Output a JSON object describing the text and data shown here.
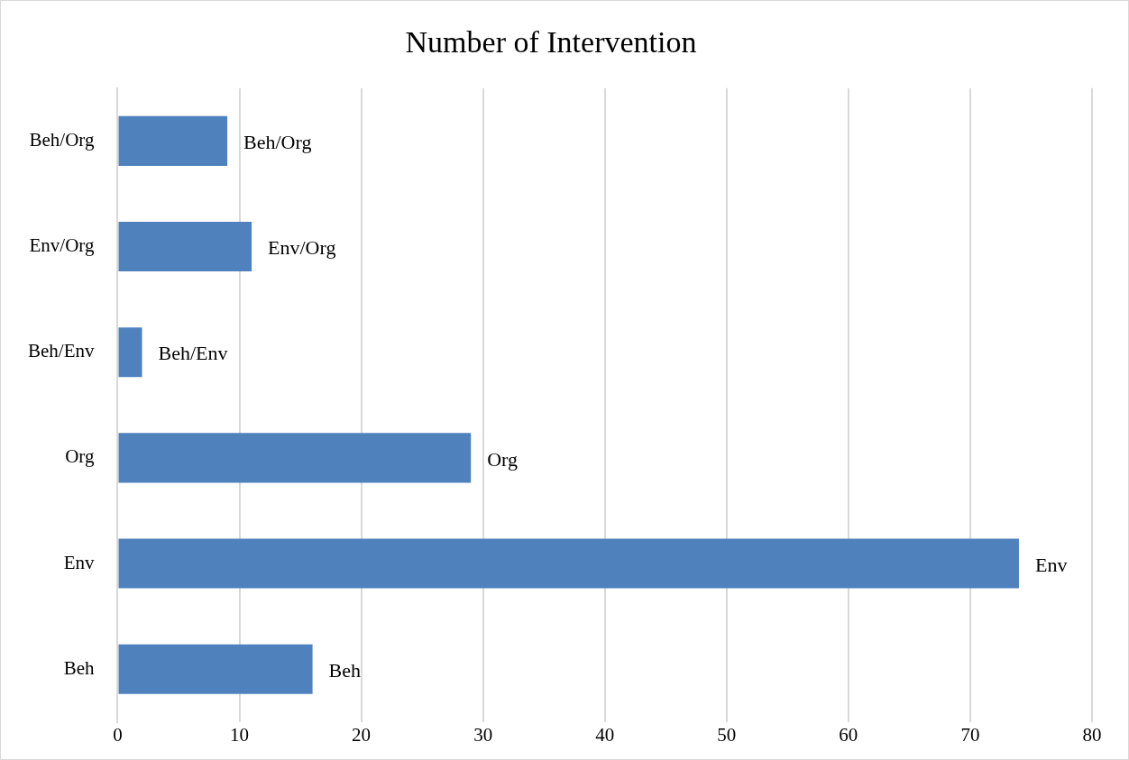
{
  "chart_data": {
    "type": "bar",
    "orientation": "horizontal",
    "title": "Number of Intervention",
    "categories": [
      "Beh/Org",
      "Env/Org",
      "Beh/Env",
      "Org",
      "Env",
      "Beh"
    ],
    "values": [
      9,
      11,
      2,
      29,
      74,
      16
    ],
    "value_labels": [
      "Beh/Org",
      "Env/Org",
      "Beh/Env",
      "Org",
      "Env",
      "Beh"
    ],
    "color": "#4f81bd",
    "xlim": [
      0,
      80
    ],
    "xticks": [
      0,
      10,
      20,
      30,
      40,
      50,
      60,
      70,
      80
    ],
    "grid": "x"
  }
}
